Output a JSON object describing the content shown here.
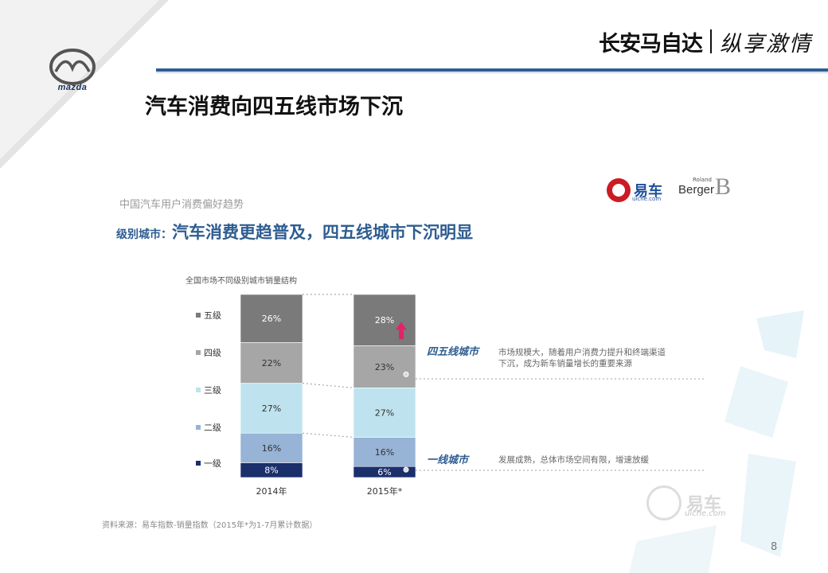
{
  "header": {
    "brand_cn": "长安马自达",
    "brand_slogan": "纵享激情",
    "logo_word": "mazda"
  },
  "slide": {
    "title": "汽车消费向四五线市场下沉",
    "page_number": "8"
  },
  "inner": {
    "subtitle": "中国汽车用户消费偏好趋势",
    "heading_label": "级别城市：",
    "heading_title": "汽车消费更趋普及，四五线城市下沉明显",
    "yiche_name": "易车",
    "yiche_domain": "uiche.com",
    "rb_small": "Roland",
    "rb_main": "Berger",
    "rb_letter": "B",
    "watermark_name": "易车",
    "watermark_domain": "uiche.com",
    "source": "资料来源：易车指数-销量指数（2015年*为1-7月累计数据）"
  },
  "chart_data": {
    "type": "bar",
    "stacked": true,
    "title": "全国市场不同级别城市销量结构",
    "categories": [
      "2014年",
      "2015年*"
    ],
    "series": [
      {
        "name": "一级",
        "values": [
          8,
          6
        ],
        "labels": [
          "8%",
          "6%"
        ],
        "color": "#1b2f6b",
        "label_color": "#ffffff"
      },
      {
        "name": "二级",
        "values": [
          16,
          16
        ],
        "labels": [
          "16%",
          "16%"
        ],
        "color": "#97b3d6",
        "label_color": "#333333"
      },
      {
        "name": "三级",
        "values": [
          27,
          27
        ],
        "labels": [
          "27%",
          "27%"
        ],
        "color": "#bfe3ee",
        "label_color": "#333333"
      },
      {
        "name": "四级",
        "values": [
          22,
          23
        ],
        "labels": [
          "22%",
          "23%"
        ],
        "color": "#a6a6a6",
        "label_color": "#333333"
      },
      {
        "name": "五级",
        "values": [
          26,
          28
        ],
        "labels": [
          "26%",
          "28%"
        ],
        "color": "#7a7a7a",
        "label_color": "#ffffff"
      }
    ],
    "legend_position": "left",
    "annotations": [
      {
        "label": "四五线城市",
        "text": "市场规模大，随着用户消费力提升和终端渠道下沉，成为新车销量增长的重要来源"
      },
      {
        "label": "一线城市",
        "text": "发展成熟，总体市场空间有限，增速放缓"
      }
    ],
    "arrow_color": "#e0246a"
  }
}
